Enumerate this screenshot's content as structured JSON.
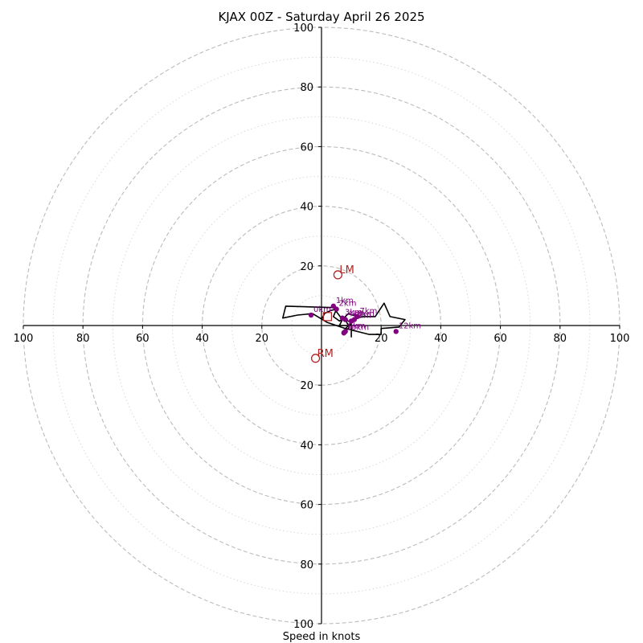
{
  "chart_data": {
    "type": "hodograph",
    "title": "KJAX 00Z - Saturday April 26 2025",
    "xlabel": "Speed in knots",
    "ylabel": "",
    "range": [
      -100,
      100
    ],
    "ring_major": [
      20,
      40,
      60,
      80,
      100
    ],
    "ring_minor": [
      10,
      30,
      50,
      70,
      90
    ],
    "grid": true,
    "tick_labels": {
      "left": [
        "100",
        "80",
        "60",
        "40",
        "20"
      ],
      "right": [
        "20",
        "40",
        "60",
        "80",
        "100"
      ],
      "top": [
        "100",
        "80",
        "60",
        "40",
        "20"
      ],
      "bottom": [
        "20",
        "40",
        "60",
        "80",
        "100"
      ]
    },
    "wind_trace": [
      [
        0,
        2
      ],
      [
        1,
        4
      ],
      [
        3,
        5
      ],
      [
        5,
        5.5
      ],
      [
        4,
        3
      ],
      [
        6,
        1.5
      ],
      [
        7,
        2
      ],
      [
        6,
        0
      ],
      [
        9,
        0
      ],
      [
        8,
        2
      ],
      [
        10,
        1
      ],
      [
        12,
        3
      ],
      [
        9,
        4
      ],
      [
        7,
        2
      ],
      [
        4,
        6
      ],
      [
        -12,
        6.5
      ],
      [
        -13,
        2.5
      ],
      [
        -8,
        3.5
      ],
      [
        -3,
        4
      ],
      [
        2,
        1
      ],
      [
        5,
        0
      ],
      [
        8,
        -1
      ],
      [
        12,
        -2
      ],
      [
        16,
        -3
      ],
      [
        20,
        -3
      ],
      [
        20,
        -1
      ],
      [
        26,
        -0.5
      ],
      [
        28,
        2
      ],
      [
        23,
        3
      ],
      [
        21,
        7.5
      ],
      [
        18,
        3
      ],
      [
        14,
        3
      ],
      [
        12,
        2.5
      ],
      [
        8,
        -1
      ],
      [
        8,
        -2
      ],
      [
        7,
        -2
      ],
      [
        9,
        -1
      ],
      [
        10,
        1
      ],
      [
        10,
        -4
      ]
    ],
    "height_markers": [
      {
        "label": "0km",
        "u": -3.5,
        "v": 3.5
      },
      {
        "label": "1km",
        "u": 4,
        "v": 6.5
      },
      {
        "label": "2km",
        "u": 5,
        "v": 5.5
      },
      {
        "label": "3km",
        "u": 7,
        "v": 2.5
      },
      {
        "label": "4km",
        "u": 8,
        "v": 2
      },
      {
        "label": "6km",
        "u": 10,
        "v": 1.5
      },
      {
        "label": "7km",
        "u": 12,
        "v": 3
      },
      {
        "label": "8km",
        "u": 11,
        "v": 2
      },
      {
        "label": "9km",
        "u": 8,
        "v": -2
      },
      {
        "label": "10km",
        "u": 7.5,
        "v": -2.5
      },
      {
        "label": "12km",
        "u": 25,
        "v": -2
      }
    ],
    "storm_motion": [
      {
        "label": "LM",
        "u": 5.5,
        "v": 17
      },
      {
        "label": "RM",
        "u": -2,
        "v": -11
      }
    ],
    "mean_wind": {
      "u": 2,
      "v": 3
    },
    "colors": {
      "trace": "#000000",
      "markers": "#800080",
      "storm_motion": "#b22222",
      "grid": "#bbbbbb",
      "grid_minor": "#d8d8d8"
    }
  }
}
